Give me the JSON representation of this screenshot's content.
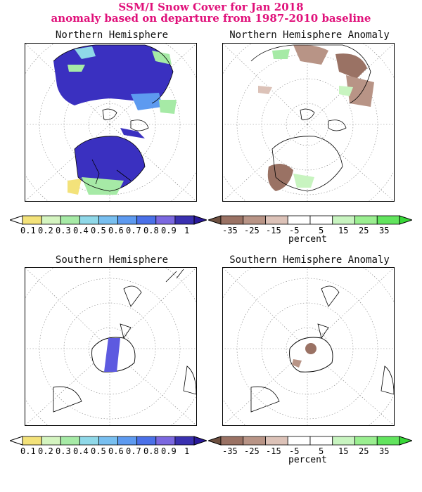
{
  "header": {
    "title_line1": "SSM/I Snow Cover for Jan 2018",
    "title_line2": "anomaly based on departure from 1987-2010 baseline"
  },
  "panels": {
    "nh": {
      "title": "Northern Hemisphere"
    },
    "nh_anom": {
      "title": "Northern Hemisphere Anomaly"
    },
    "sh": {
      "title": "Southern Hemisphere"
    },
    "sh_anom": {
      "title": "Southern Hemisphere Anomaly"
    }
  },
  "colorbars": {
    "cover": {
      "labels": [
        "0.1",
        "0.2",
        "0.3",
        "0.4",
        "0.5",
        "0.6",
        "0.7",
        "0.8",
        "0.9",
        "1"
      ],
      "colors": [
        "#ffffff",
        "#f3e27a",
        "#d4f4c0",
        "#a6eaa6",
        "#8fd8e8",
        "#78bff0",
        "#5d9af0",
        "#4a70e8",
        "#7b68e0",
        "#3a30b0",
        "#2a1a9a"
      ]
    },
    "anomaly": {
      "labels": [
        "-35",
        "-25",
        "-15",
        "-5",
        "5",
        "15",
        "25",
        "35"
      ],
      "unit": "percent",
      "colors": [
        "#6e5040",
        "#9a7264",
        "#b89486",
        "#dcc2b8",
        "#ffffff",
        "#ffffff",
        "#c8f4c0",
        "#9aee90",
        "#62e45e",
        "#38d838"
      ]
    }
  }
}
